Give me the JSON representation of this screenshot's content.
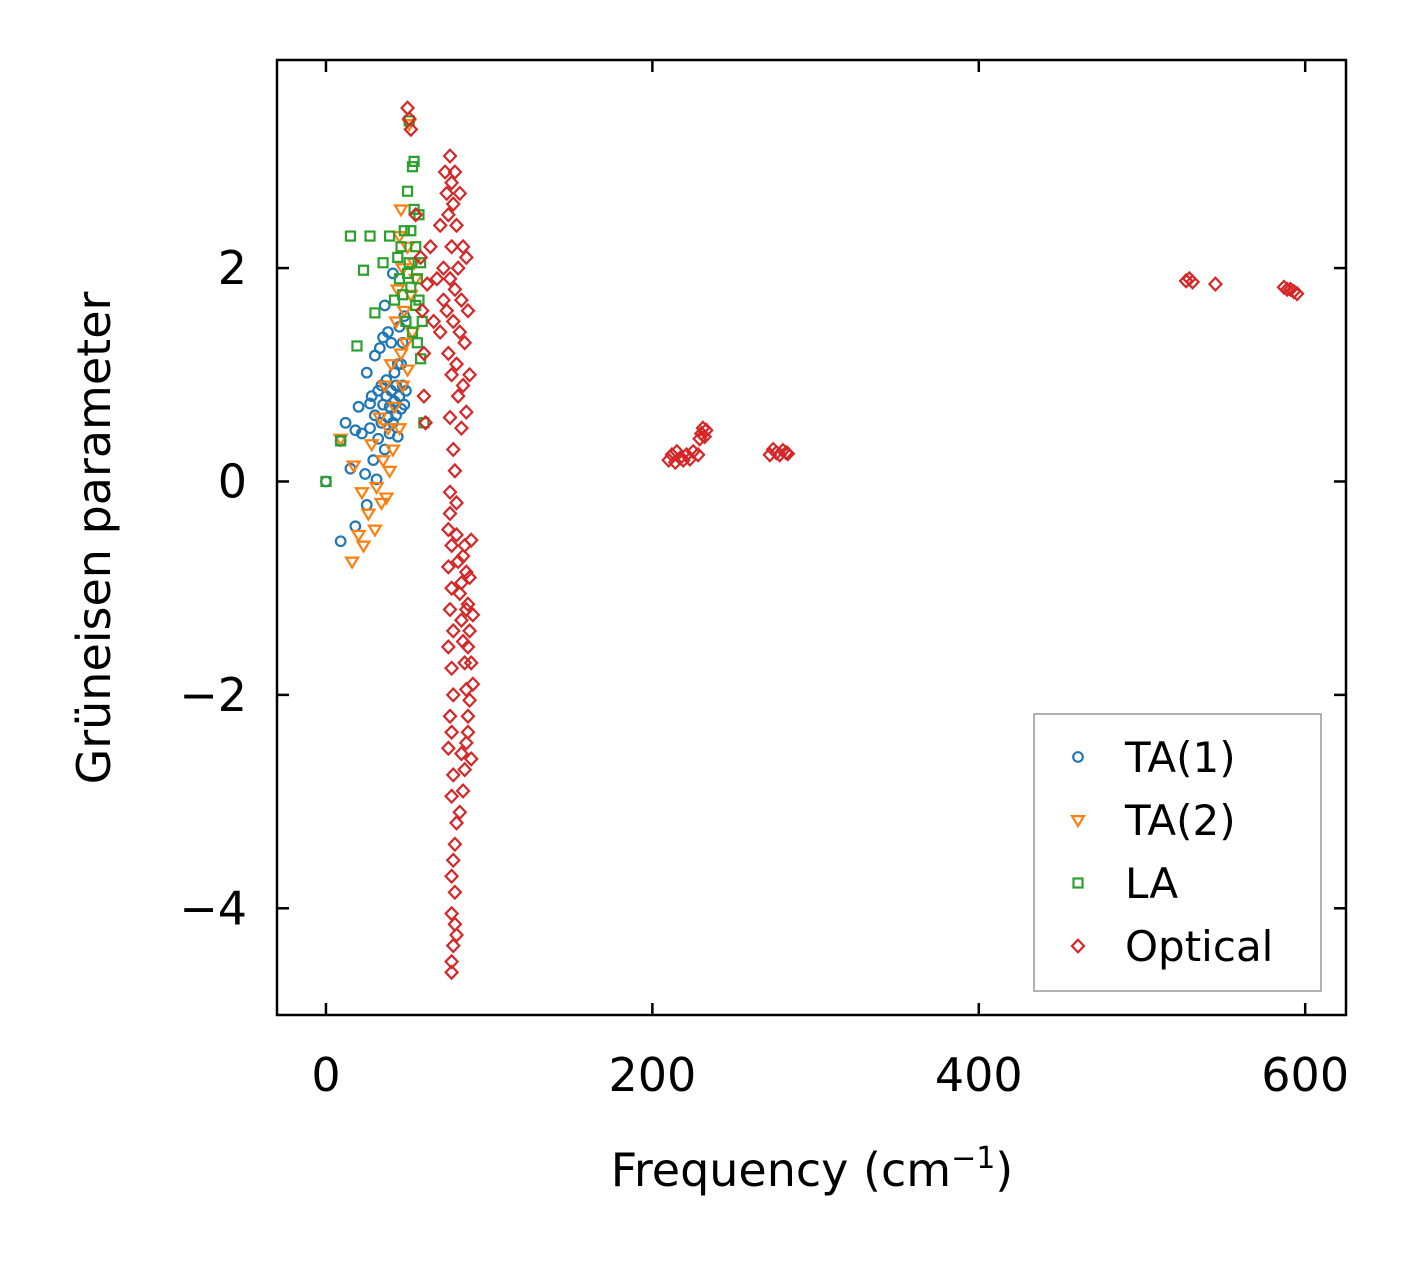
{
  "chart_data": {
    "type": "scatter",
    "title": "",
    "xlabel": "Frequency (cm",
    "xlabel_sup": "−1",
    "xlabel_close": ")",
    "ylabel": "Grüneisen parameter",
    "xlim": [
      -30,
      625
    ],
    "ylim": [
      -5.0,
      3.95
    ],
    "xticks": [
      0,
      200,
      400,
      600
    ],
    "xtick_labels": [
      "0",
      "200",
      "400",
      "600"
    ],
    "yticks": [
      -4,
      -2,
      0,
      2
    ],
    "ytick_labels": [
      "−4",
      "−2",
      "0",
      "2"
    ],
    "grid": false,
    "legend_position": "lower-right",
    "series": [
      {
        "name": "TA(1)",
        "marker": "circle",
        "color": "#1f77b4",
        "points": [
          [
            0,
            0
          ],
          [
            9,
            -0.56
          ],
          [
            9,
            0.38
          ],
          [
            12,
            0.55
          ],
          [
            15,
            0.12
          ],
          [
            18,
            -0.42
          ],
          [
            18,
            0.48
          ],
          [
            20,
            0.7
          ],
          [
            22,
            0.45
          ],
          [
            24,
            0.07
          ],
          [
            25,
            -0.22
          ],
          [
            25,
            1.02
          ],
          [
            27,
            0.5
          ],
          [
            27,
            0.73
          ],
          [
            28,
            0.8
          ],
          [
            29,
            0.2
          ],
          [
            30,
            0.62
          ],
          [
            30,
            1.18
          ],
          [
            31,
            0.02
          ],
          [
            32,
            0.85
          ],
          [
            32,
            0.4
          ],
          [
            33,
            1.25
          ],
          [
            34,
            0.55
          ],
          [
            34,
            0.9
          ],
          [
            35,
            0.72
          ],
          [
            35,
            1.35
          ],
          [
            36,
            0.3
          ],
          [
            36,
            1.65
          ],
          [
            37,
            0.8
          ],
          [
            37,
            0.95
          ],
          [
            38,
            0.6
          ],
          [
            38,
            1.4
          ],
          [
            39,
            0.45
          ],
          [
            39,
            0.7
          ],
          [
            40,
            0.85
          ],
          [
            40,
            1.3
          ],
          [
            41,
            0.55
          ],
          [
            41,
            1.95
          ],
          [
            42,
            0.75
          ],
          [
            42,
            1.02
          ],
          [
            43,
            0.62
          ],
          [
            43,
            0.9
          ],
          [
            44,
            1.1
          ],
          [
            44,
            0.42
          ],
          [
            45,
            0.8
          ],
          [
            45,
            1.45
          ],
          [
            46,
            0.68
          ],
          [
            46,
            1.1
          ],
          [
            47,
            0.9
          ],
          [
            47,
            1.3
          ],
          [
            48,
            0.72
          ],
          [
            48,
            1.55
          ],
          [
            49,
            0.85
          ]
        ]
      },
      {
        "name": "TA(2)",
        "marker": "triangle-down",
        "color": "#ff7f0e",
        "points": [
          [
            9,
            0.4
          ],
          [
            16,
            -0.75
          ],
          [
            17,
            0.15
          ],
          [
            20,
            -0.5
          ],
          [
            22,
            -0.1
          ],
          [
            23,
            -0.6
          ],
          [
            26,
            -0.3
          ],
          [
            28,
            0.35
          ],
          [
            30,
            -0.45
          ],
          [
            31,
            -0.05
          ],
          [
            33,
            0.6
          ],
          [
            34,
            -0.2
          ],
          [
            35,
            0.2
          ],
          [
            36,
            0.9
          ],
          [
            37,
            -0.15
          ],
          [
            38,
            0.5
          ],
          [
            39,
            0.1
          ],
          [
            40,
            1.1
          ],
          [
            41,
            0.3
          ],
          [
            42,
            0.7
          ],
          [
            43,
            1.5
          ],
          [
            44,
            1.8
          ],
          [
            45,
            0.5
          ],
          [
            45,
            2.3
          ],
          [
            46,
            1.2
          ],
          [
            46,
            2.55
          ],
          [
            47,
            0.9
          ],
          [
            47,
            2.0
          ],
          [
            48,
            1.6
          ],
          [
            49,
            1.3
          ],
          [
            50,
            2.2
          ],
          [
            50,
            1.05
          ],
          [
            51,
            3.35
          ],
          [
            52,
            1.75
          ],
          [
            53,
            1.4
          ],
          [
            54,
            2.05
          ],
          [
            55,
            1.9
          ]
        ]
      },
      {
        "name": "LA",
        "marker": "square",
        "color": "#2ca02c",
        "points": [
          [
            0,
            0
          ],
          [
            9,
            0.38
          ],
          [
            15,
            2.3
          ],
          [
            19,
            1.27
          ],
          [
            23,
            1.98
          ],
          [
            27,
            2.3
          ],
          [
            30,
            1.58
          ],
          [
            35,
            2.05
          ],
          [
            39,
            2.3
          ],
          [
            42,
            1.7
          ],
          [
            44,
            2.1
          ],
          [
            45,
            1.9
          ],
          [
            46,
            2.2
          ],
          [
            47,
            1.75
          ],
          [
            48,
            2.35
          ],
          [
            49,
            1.5
          ],
          [
            50,
            2.72
          ],
          [
            50,
            1.95
          ],
          [
            51,
            2.05
          ],
          [
            52,
            2.35
          ],
          [
            52,
            1.82
          ],
          [
            53,
            2.95
          ],
          [
            53,
            1.4
          ],
          [
            54,
            3.0
          ],
          [
            54,
            2.55
          ],
          [
            55,
            1.65
          ],
          [
            55,
            2.2
          ],
          [
            56,
            1.9
          ],
          [
            56,
            1.3
          ],
          [
            57,
            2.5
          ],
          [
            57,
            1.7
          ],
          [
            58,
            1.15
          ],
          [
            58,
            2.05
          ],
          [
            59,
            1.5
          ],
          [
            60,
            0.55
          ],
          [
            51,
            3.38
          ]
        ]
      },
      {
        "name": "Optical",
        "marker": "diamond",
        "color": "#d62728",
        "points": [
          [
            50,
            3.5
          ],
          [
            51,
            3.4
          ],
          [
            52,
            3.3
          ],
          [
            55,
            2.5
          ],
          [
            58,
            2.1
          ],
          [
            59,
            1.6
          ],
          [
            60,
            1.2
          ],
          [
            60,
            0.8
          ],
          [
            61,
            0.55
          ],
          [
            62,
            1.85
          ],
          [
            64,
            2.2
          ],
          [
            66,
            1.5
          ],
          [
            68,
            1.9
          ],
          [
            70,
            1.4
          ],
          [
            70,
            2.4
          ],
          [
            72,
            1.7
          ],
          [
            72,
            2.0
          ],
          [
            73,
            2.9
          ],
          [
            74,
            2.7
          ],
          [
            74,
            1.6
          ],
          [
            75,
            2.5
          ],
          [
            75,
            1.2
          ],
          [
            76,
            3.05
          ],
          [
            76,
            1.9
          ],
          [
            76,
            0.6
          ],
          [
            77,
            2.8
          ],
          [
            77,
            2.2
          ],
          [
            77,
            1.0
          ],
          [
            78,
            2.6
          ],
          [
            78,
            1.5
          ],
          [
            78,
            0.3
          ],
          [
            79,
            2.9
          ],
          [
            79,
            1.8
          ],
          [
            79,
            0.1
          ],
          [
            80,
            2.4
          ],
          [
            80,
            1.1
          ],
          [
            81,
            2.0
          ],
          [
            81,
            0.8
          ],
          [
            82,
            1.4
          ],
          [
            82,
            2.7
          ],
          [
            83,
            1.7
          ],
          [
            83,
            0.5
          ],
          [
            84,
            2.2
          ],
          [
            84,
            0.9
          ],
          [
            85,
            1.3
          ],
          [
            86,
            2.1
          ],
          [
            86,
            0.65
          ],
          [
            87,
            1.6
          ],
          [
            88,
            1.0
          ],
          [
            76,
            -0.1
          ],
          [
            76,
            -0.3
          ],
          [
            75,
            -0.45
          ],
          [
            77,
            -0.6
          ],
          [
            75,
            -0.8
          ],
          [
            77,
            -1.0
          ],
          [
            76,
            -1.2
          ],
          [
            78,
            -1.4
          ],
          [
            75,
            -1.55
          ],
          [
            77,
            -1.75
          ],
          [
            78,
            -2.0
          ],
          [
            76,
            -2.2
          ],
          [
            77,
            -2.35
          ],
          [
            75,
            -2.5
          ],
          [
            78,
            -2.75
          ],
          [
            77,
            -2.95
          ],
          [
            80,
            -3.2
          ],
          [
            79,
            -3.4
          ],
          [
            78,
            -3.55
          ],
          [
            77,
            -3.7
          ],
          [
            79,
            -3.85
          ],
          [
            77,
            -4.05
          ],
          [
            79,
            -4.15
          ],
          [
            80,
            -4.25
          ],
          [
            78,
            -4.35
          ],
          [
            77,
            -4.5
          ],
          [
            77,
            -4.6
          ],
          [
            80,
            -0.2
          ],
          [
            80,
            -0.5
          ],
          [
            81,
            -0.75
          ],
          [
            82,
            -1.05
          ],
          [
            83,
            -1.3
          ],
          [
            84,
            -1.5
          ],
          [
            85,
            -1.7
          ],
          [
            86,
            -1.95
          ],
          [
            87,
            -2.2
          ],
          [
            86,
            -2.45
          ],
          [
            85,
            -2.7
          ],
          [
            84,
            -2.9
          ],
          [
            82,
            -3.1
          ],
          [
            83,
            -2.55
          ],
          [
            85,
            -0.6
          ],
          [
            86,
            -0.85
          ],
          [
            87,
            -1.15
          ],
          [
            88,
            -1.4
          ],
          [
            89,
            -1.7
          ],
          [
            88,
            -2.05
          ],
          [
            87,
            -2.35
          ],
          [
            89,
            -0.55
          ],
          [
            88,
            -0.9
          ],
          [
            90,
            -1.25
          ],
          [
            90,
            -1.9
          ],
          [
            89,
            -2.6
          ],
          [
            84,
            -0.7
          ],
          [
            83,
            -0.95
          ],
          [
            86,
            -1.2
          ],
          [
            87,
            -1.55
          ],
          [
            210,
            0.2
          ],
          [
            212,
            0.25
          ],
          [
            214,
            0.18
          ],
          [
            215,
            0.28
          ],
          [
            217,
            0.22
          ],
          [
            219,
            0.2
          ],
          [
            221,
            0.25
          ],
          [
            223,
            0.21
          ],
          [
            225,
            0.28
          ],
          [
            228,
            0.25
          ],
          [
            229,
            0.4
          ],
          [
            230,
            0.45
          ],
          [
            231,
            0.5
          ],
          [
            232,
            0.42
          ],
          [
            233,
            0.48
          ],
          [
            272,
            0.25
          ],
          [
            274,
            0.3
          ],
          [
            276,
            0.27
          ],
          [
            278,
            0.25
          ],
          [
            280,
            0.29
          ],
          [
            282,
            0.27
          ],
          [
            283,
            0.26
          ],
          [
            527,
            1.88
          ],
          [
            529,
            1.9
          ],
          [
            531,
            1.87
          ],
          [
            545,
            1.85
          ],
          [
            587,
            1.82
          ],
          [
            589,
            1.8
          ],
          [
            591,
            1.8
          ],
          [
            593,
            1.78
          ],
          [
            595,
            1.76
          ]
        ]
      }
    ]
  }
}
